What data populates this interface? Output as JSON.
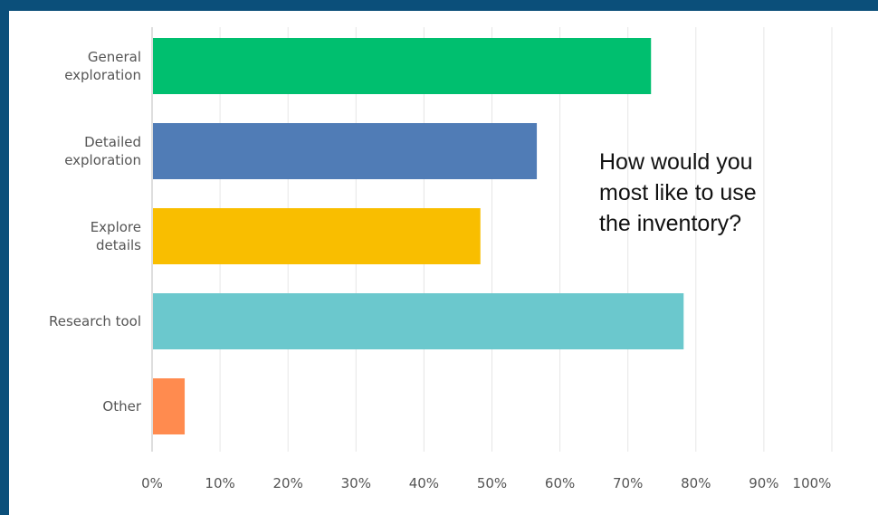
{
  "question": "How would you\nmost like to use\nthe inventory?",
  "colors": {
    "frame": "#0b4f7a",
    "grid": "#e6e6e6",
    "axis": "#bdbdbd"
  },
  "chart_data": {
    "type": "bar",
    "orientation": "horizontal",
    "categories": [
      [
        "General",
        "exploration"
      ],
      [
        "Detailed",
        "exploration"
      ],
      [
        "Explore",
        "details"
      ],
      [
        "Research tool"
      ],
      [
        "Other"
      ]
    ],
    "values": [
      73.4,
      56.6,
      48.3,
      78.2,
      4.8
    ],
    "colors": [
      "#00bf6f",
      "#507cb6",
      "#f9be00",
      "#6bc8cd",
      "#ff8b4f"
    ],
    "xlim": [
      0,
      100
    ],
    "xticks": [
      "0%",
      "10%",
      "20%",
      "30%",
      "40%",
      "50%",
      "60%",
      "70%",
      "80%",
      "90%",
      "100%"
    ],
    "grid": true
  }
}
